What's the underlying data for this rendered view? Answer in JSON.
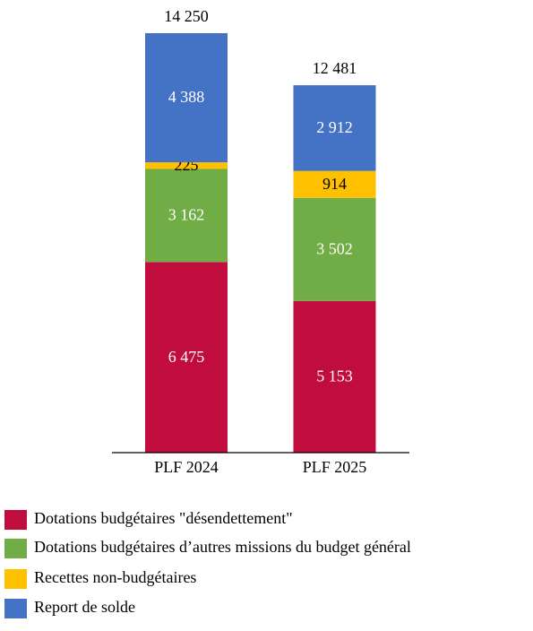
{
  "chart_data": {
    "type": "stacked_bar",
    "categories": [
      "PLF 2024",
      "PLF 2025"
    ],
    "series": [
      {
        "name": "Dotations budgétaires \"désendettement\"",
        "color": "#c00d3d",
        "label_color": "#ffffff",
        "values": [
          6475,
          5153
        ],
        "value_labels": [
          "6 475",
          "5 153"
        ]
      },
      {
        "name": "Dotations budgétaires d’autres missions du budget général",
        "color": "#70ad47",
        "label_color": "#ffffff",
        "values": [
          3162,
          3502
        ],
        "value_labels": [
          "3 162",
          "3 502"
        ]
      },
      {
        "name": "Recettes non-budgétaires",
        "color": "#ffc000",
        "label_color": "#000000",
        "values": [
          225,
          914
        ],
        "value_labels": [
          "225",
          "914"
        ]
      },
      {
        "name": "Report de solde",
        "color": "#4472c4",
        "label_color": "#ffffff",
        "values": [
          4388,
          2912
        ],
        "value_labels": [
          "4 388",
          "2 912"
        ]
      }
    ],
    "totals": [
      14250,
      12481
    ],
    "total_labels": [
      "14 250",
      "12 481"
    ]
  }
}
